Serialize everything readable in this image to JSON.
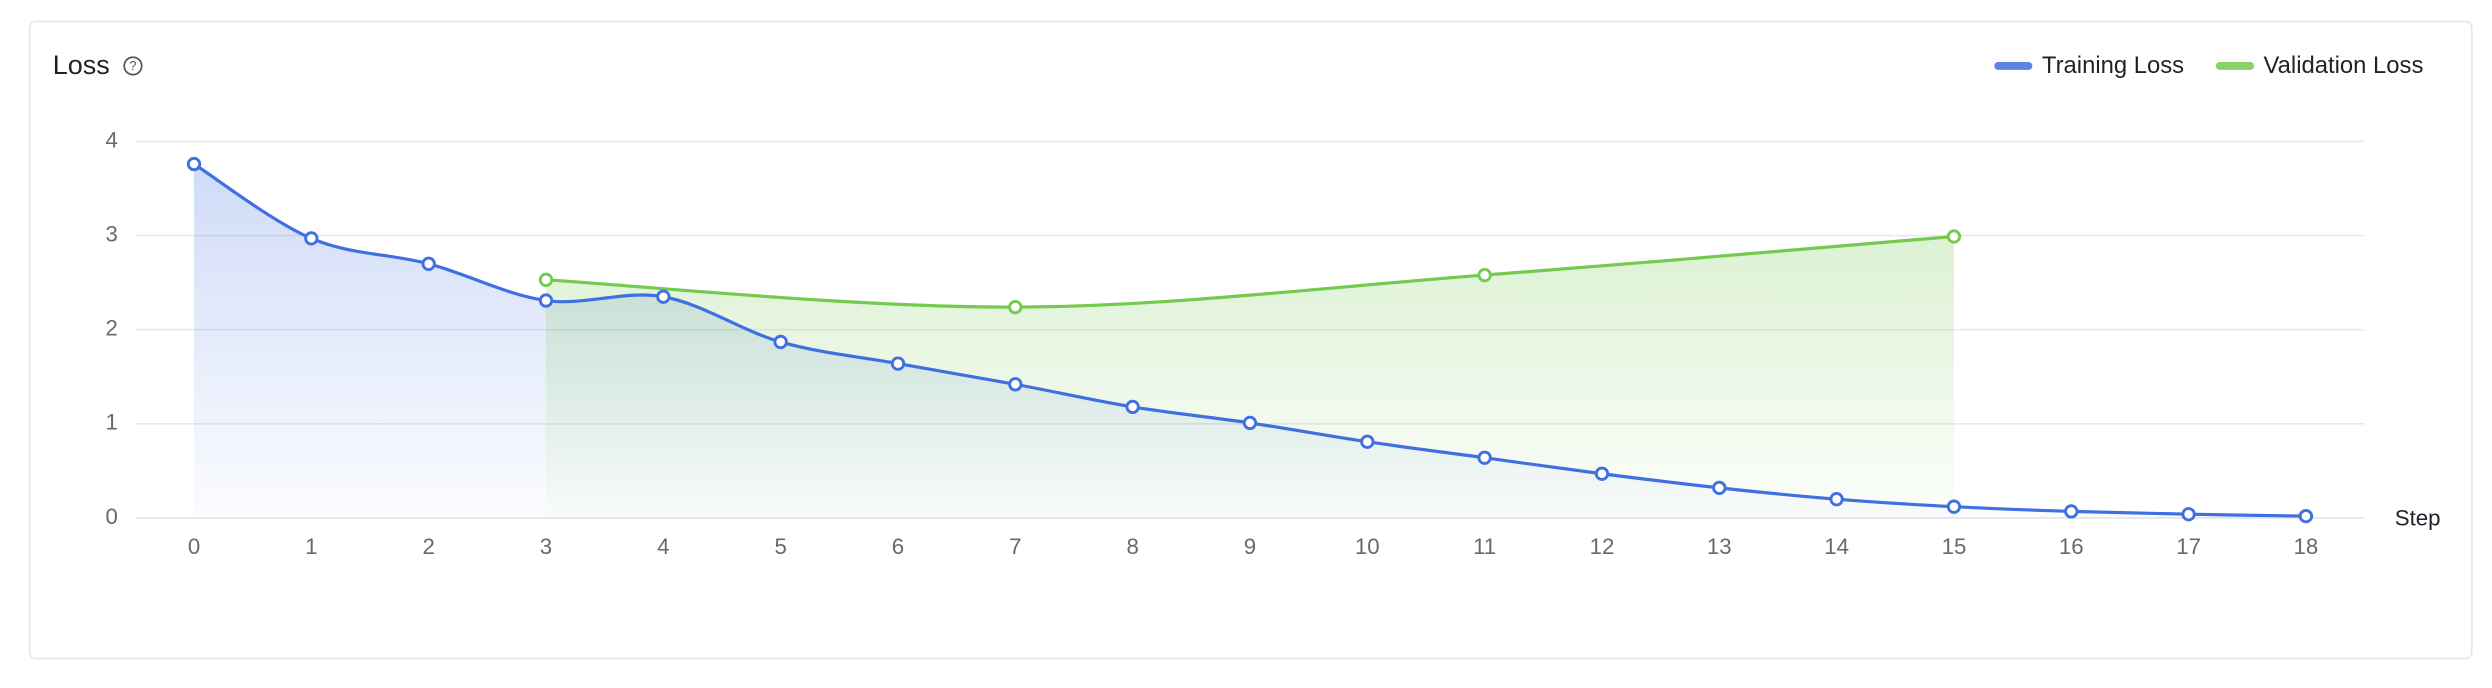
{
  "chart_data": {
    "type": "line",
    "title": "Loss",
    "x_label": "Step",
    "legend": "top-right",
    "grid": true,
    "xlim": [
      -0.5,
      18.5
    ],
    "xticks": [
      0,
      1,
      2,
      3,
      4,
      5,
      6,
      7,
      8,
      9,
      10,
      11,
      12,
      13,
      14,
      15,
      16,
      17,
      18
    ],
    "ylim": [
      0,
      4
    ],
    "yticks": [
      0,
      1,
      2,
      3,
      4
    ],
    "series": [
      {
        "name": "Training Loss",
        "color": "#3f6fe0",
        "x": [
          0,
          1,
          2,
          3,
          4,
          5,
          6,
          7,
          8,
          9,
          10,
          11,
          12,
          13,
          14,
          15,
          16,
          17,
          18
        ],
        "values": [
          3.76,
          2.97,
          2.7,
          2.31,
          2.35,
          1.87,
          1.64,
          1.42,
          1.18,
          1.01,
          0.81,
          0.64,
          0.47,
          0.32,
          0.2,
          0.12,
          0.07,
          0.04,
          0.02
        ]
      },
      {
        "name": "Validation Loss",
        "color": "#74c94f",
        "x": [
          3,
          7,
          11,
          15
        ],
        "values": [
          2.53,
          2.24,
          2.58,
          2.99
        ]
      }
    ]
  }
}
